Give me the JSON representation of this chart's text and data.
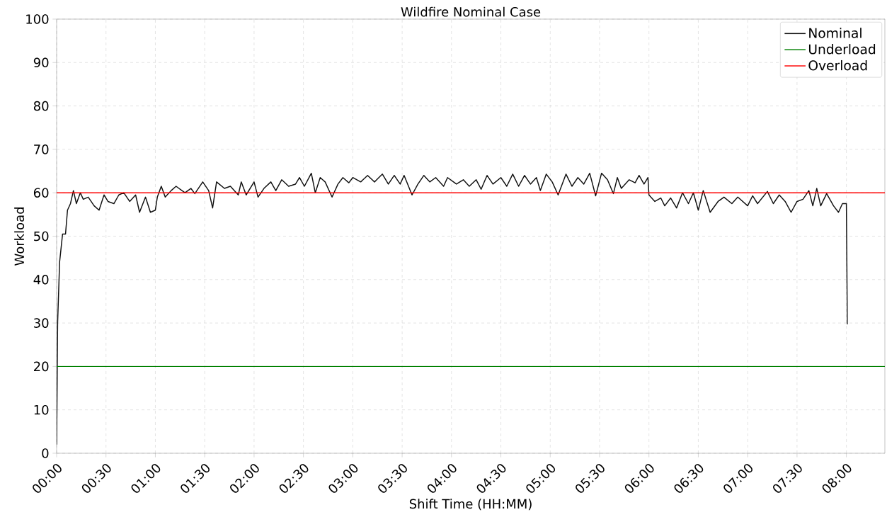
{
  "chart_data": {
    "type": "line",
    "title": "Wildfire Nominal Case",
    "xlabel": "Shift Time (HH:MM)",
    "ylabel": "Workload",
    "xlim": [
      0,
      8.39
    ],
    "ylim": [
      0,
      100
    ],
    "xticks": [
      {
        "value": 0,
        "label": "00:00"
      },
      {
        "value": 0.5,
        "label": "00:30"
      },
      {
        "value": 1,
        "label": "01:00"
      },
      {
        "value": 1.5,
        "label": "01:30"
      },
      {
        "value": 2,
        "label": "02:00"
      },
      {
        "value": 2.5,
        "label": "02:30"
      },
      {
        "value": 3,
        "label": "03:00"
      },
      {
        "value": 3.5,
        "label": "03:30"
      },
      {
        "value": 4,
        "label": "04:00"
      },
      {
        "value": 4.5,
        "label": "04:30"
      },
      {
        "value": 5,
        "label": "05:00"
      },
      {
        "value": 5.5,
        "label": "05:30"
      },
      {
        "value": 6,
        "label": "06:00"
      },
      {
        "value": 6.5,
        "label": "06:30"
      },
      {
        "value": 7,
        "label": "07:00"
      },
      {
        "value": 7.5,
        "label": "07:30"
      },
      {
        "value": 8,
        "label": "08:00"
      }
    ],
    "yticks": [
      0,
      10,
      20,
      30,
      40,
      50,
      60,
      70,
      80,
      90,
      100
    ],
    "grid": true,
    "legend": "top right",
    "series": [
      {
        "name": "Nominal",
        "color": "#111111",
        "x": [
          0,
          0.01,
          0.03,
          0.06,
          0.09,
          0.11,
          0.14,
          0.17,
          0.2,
          0.24,
          0.27,
          0.32,
          0.38,
          0.43,
          0.48,
          0.52,
          0.58,
          0.63,
          0.68,
          0.74,
          0.8,
          0.84,
          0.9,
          0.95,
          1.0,
          1.02,
          1.06,
          1.1,
          1.16,
          1.21,
          1.3,
          1.36,
          1.4,
          1.48,
          1.54,
          1.58,
          1.62,
          1.7,
          1.76,
          1.84,
          1.87,
          1.92,
          2.0,
          2.04,
          2.1,
          2.17,
          2.22,
          2.28,
          2.35,
          2.42,
          2.46,
          2.51,
          2.58,
          2.62,
          2.67,
          2.72,
          2.79,
          2.85,
          2.9,
          2.96,
          3.0,
          3.08,
          3.15,
          3.22,
          3.3,
          3.36,
          3.42,
          3.48,
          3.52,
          3.6,
          3.66,
          3.72,
          3.78,
          3.84,
          3.92,
          3.96,
          4.05,
          4.12,
          4.18,
          4.25,
          4.3,
          4.36,
          4.42,
          4.5,
          4.56,
          4.62,
          4.68,
          4.74,
          4.8,
          4.86,
          4.9,
          4.96,
          5.02,
          5.08,
          5.16,
          5.22,
          5.28,
          5.34,
          5.4,
          5.46,
          5.52,
          5.58,
          5.64,
          5.68,
          5.72,
          5.8,
          5.86,
          5.9,
          5.95,
          5.99,
          6.0,
          6.06,
          6.12,
          6.16,
          6.22,
          6.28,
          6.34,
          6.4,
          6.45,
          6.5,
          6.55,
          6.62,
          6.7,
          6.76,
          6.84,
          6.9,
          7.0,
          7.05,
          7.1,
          7.2,
          7.26,
          7.32,
          7.38,
          7.44,
          7.5,
          7.56,
          7.62,
          7.66,
          7.7,
          7.74,
          7.8,
          7.87,
          7.92,
          7.96,
          8.0,
          8.01
        ],
        "values": [
          2,
          30,
          44,
          50.5,
          50.5,
          56,
          57.5,
          60.5,
          57.5,
          60,
          58.5,
          59,
          57,
          56,
          59.5,
          58,
          57.5,
          59.5,
          60,
          58,
          59.5,
          55.5,
          59,
          55.5,
          56,
          59,
          61.5,
          59,
          60.5,
          61.5,
          60,
          61,
          59.8,
          62.5,
          60.5,
          56.5,
          62.5,
          61,
          61.5,
          59.5,
          62.5,
          59.5,
          62.5,
          59,
          61,
          62.5,
          60.5,
          63,
          61.5,
          62,
          63.5,
          61.5,
          64.5,
          60,
          63.5,
          62.5,
          59,
          62,
          63.5,
          62.3,
          63.5,
          62.5,
          64,
          62.5,
          64.3,
          62,
          64,
          62,
          64,
          59.5,
          62,
          64,
          62.5,
          63.5,
          61.5,
          63.5,
          62,
          63,
          61.5,
          63,
          60.8,
          64,
          62,
          63.5,
          61.5,
          64.3,
          61.5,
          64,
          62,
          63.5,
          60.5,
          64.3,
          62.5,
          59.5,
          64.3,
          61.5,
          63.5,
          62,
          64.5,
          59.3,
          64.5,
          63,
          59.8,
          63.5,
          61,
          63,
          62.3,
          64,
          62,
          63.5,
          59.5,
          58,
          58.8,
          57,
          58.8,
          56.5,
          60,
          57.5,
          60,
          56,
          60.5,
          55.5,
          58,
          59,
          57.5,
          59,
          57,
          59.3,
          57.5,
          60.3,
          57.5,
          59.5,
          58,
          55.5,
          58,
          58.5,
          60.5,
          57,
          61,
          57,
          59.8,
          57,
          55.5,
          57.5,
          57.5,
          29.7
        ]
      },
      {
        "name": "Underload",
        "color": "#008000",
        "x": [
          0,
          8.39
        ],
        "values": [
          20,
          20
        ]
      },
      {
        "name": "Overload",
        "color": "#ff0000",
        "x": [
          0,
          8.39
        ],
        "values": [
          60,
          60
        ]
      }
    ]
  }
}
